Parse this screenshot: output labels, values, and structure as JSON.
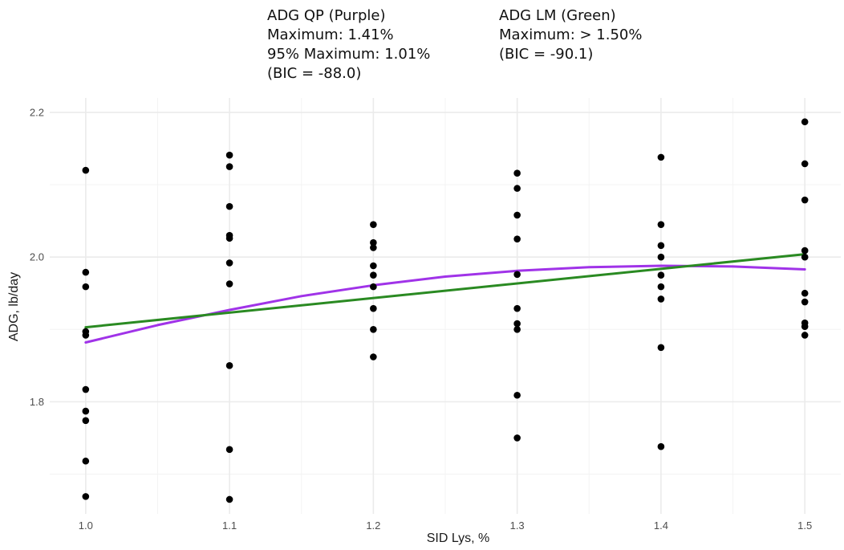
{
  "annotations": {
    "qp": {
      "line1": "ADG QP (Purple)",
      "line2": "Maximum: 1.41%",
      "line3": "95% Maximum: 1.01%",
      "line4": "(BIC = -88.0)"
    },
    "lm": {
      "line1": "ADG LM (Green)",
      "line2": "Maximum: > 1.50%",
      "line3": "(BIC = -90.1)"
    }
  },
  "chart_data": {
    "type": "scatter",
    "xlabel": "SID Lys, %",
    "ylabel": "ADG, lb/day",
    "xlim": [
      0.975,
      1.525
    ],
    "ylim": [
      1.645,
      2.22
    ],
    "x_ticks": [
      1.0,
      1.1,
      1.2,
      1.3,
      1.4,
      1.5
    ],
    "x_tick_labels": [
      "1.0",
      "1.1",
      "1.2",
      "1.3",
      "1.4",
      "1.5"
    ],
    "y_ticks": [
      1.8,
      2.0,
      2.2
    ],
    "y_tick_labels": [
      "1.8",
      "2.0",
      "2.2"
    ],
    "grid": true,
    "points": [
      {
        "x": 1.0,
        "y": 2.12
      },
      {
        "x": 1.0,
        "y": 1.979
      },
      {
        "x": 1.0,
        "y": 1.959
      },
      {
        "x": 1.0,
        "y": 1.897
      },
      {
        "x": 1.0,
        "y": 1.892
      },
      {
        "x": 1.0,
        "y": 1.817
      },
      {
        "x": 1.0,
        "y": 1.787
      },
      {
        "x": 1.0,
        "y": 1.774
      },
      {
        "x": 1.0,
        "y": 1.718
      },
      {
        "x": 1.0,
        "y": 1.669
      },
      {
        "x": 1.1,
        "y": 2.141
      },
      {
        "x": 1.1,
        "y": 2.125
      },
      {
        "x": 1.1,
        "y": 2.07
      },
      {
        "x": 1.1,
        "y": 2.03
      },
      {
        "x": 1.1,
        "y": 2.026
      },
      {
        "x": 1.1,
        "y": 1.992
      },
      {
        "x": 1.1,
        "y": 1.963
      },
      {
        "x": 1.1,
        "y": 1.85
      },
      {
        "x": 1.1,
        "y": 1.734
      },
      {
        "x": 1.1,
        "y": 1.665
      },
      {
        "x": 1.2,
        "y": 2.045
      },
      {
        "x": 1.2,
        "y": 2.02
      },
      {
        "x": 1.2,
        "y": 2.013
      },
      {
        "x": 1.2,
        "y": 1.988
      },
      {
        "x": 1.2,
        "y": 1.975
      },
      {
        "x": 1.2,
        "y": 1.959
      },
      {
        "x": 1.2,
        "y": 1.929
      },
      {
        "x": 1.2,
        "y": 1.9
      },
      {
        "x": 1.2,
        "y": 1.862
      },
      {
        "x": 1.3,
        "y": 2.116
      },
      {
        "x": 1.3,
        "y": 2.095
      },
      {
        "x": 1.3,
        "y": 2.058
      },
      {
        "x": 1.3,
        "y": 2.025
      },
      {
        "x": 1.3,
        "y": 1.976
      },
      {
        "x": 1.3,
        "y": 1.929
      },
      {
        "x": 1.3,
        "y": 1.908
      },
      {
        "x": 1.3,
        "y": 1.9
      },
      {
        "x": 1.3,
        "y": 1.809
      },
      {
        "x": 1.3,
        "y": 1.75
      },
      {
        "x": 1.4,
        "y": 2.138
      },
      {
        "x": 1.4,
        "y": 2.045
      },
      {
        "x": 1.4,
        "y": 2.016
      },
      {
        "x": 1.4,
        "y": 2.0
      },
      {
        "x": 1.4,
        "y": 1.975
      },
      {
        "x": 1.4,
        "y": 1.959
      },
      {
        "x": 1.4,
        "y": 1.942
      },
      {
        "x": 1.4,
        "y": 1.875
      },
      {
        "x": 1.4,
        "y": 1.738
      },
      {
        "x": 1.5,
        "y": 2.187
      },
      {
        "x": 1.5,
        "y": 2.129
      },
      {
        "x": 1.5,
        "y": 2.079
      },
      {
        "x": 1.5,
        "y": 2.009
      },
      {
        "x": 1.5,
        "y": 2.0
      },
      {
        "x": 1.5,
        "y": 1.95
      },
      {
        "x": 1.5,
        "y": 1.938
      },
      {
        "x": 1.5,
        "y": 1.909
      },
      {
        "x": 1.5,
        "y": 1.904
      },
      {
        "x": 1.5,
        "y": 1.892
      }
    ],
    "fits": [
      {
        "name": "QP",
        "color": "#a033e8",
        "model": "quadratic",
        "x": [
          1.0,
          1.05,
          1.1,
          1.15,
          1.2,
          1.25,
          1.3,
          1.35,
          1.4,
          1.45,
          1.5
        ],
        "y": [
          1.882,
          1.906,
          1.927,
          1.946,
          1.961,
          1.973,
          1.981,
          1.986,
          1.988,
          1.987,
          1.983
        ]
      },
      {
        "name": "LM",
        "color": "#2a8a22",
        "model": "linear",
        "x": [
          1.0,
          1.5
        ],
        "y": [
          1.903,
          2.004
        ]
      }
    ],
    "colors": {
      "points": "#000000",
      "grid_major": "#ebebeb",
      "grid_minor": "#f3f3f3",
      "axis_text": "#4d4d4d",
      "axis_title": "#1a1a1a"
    }
  }
}
